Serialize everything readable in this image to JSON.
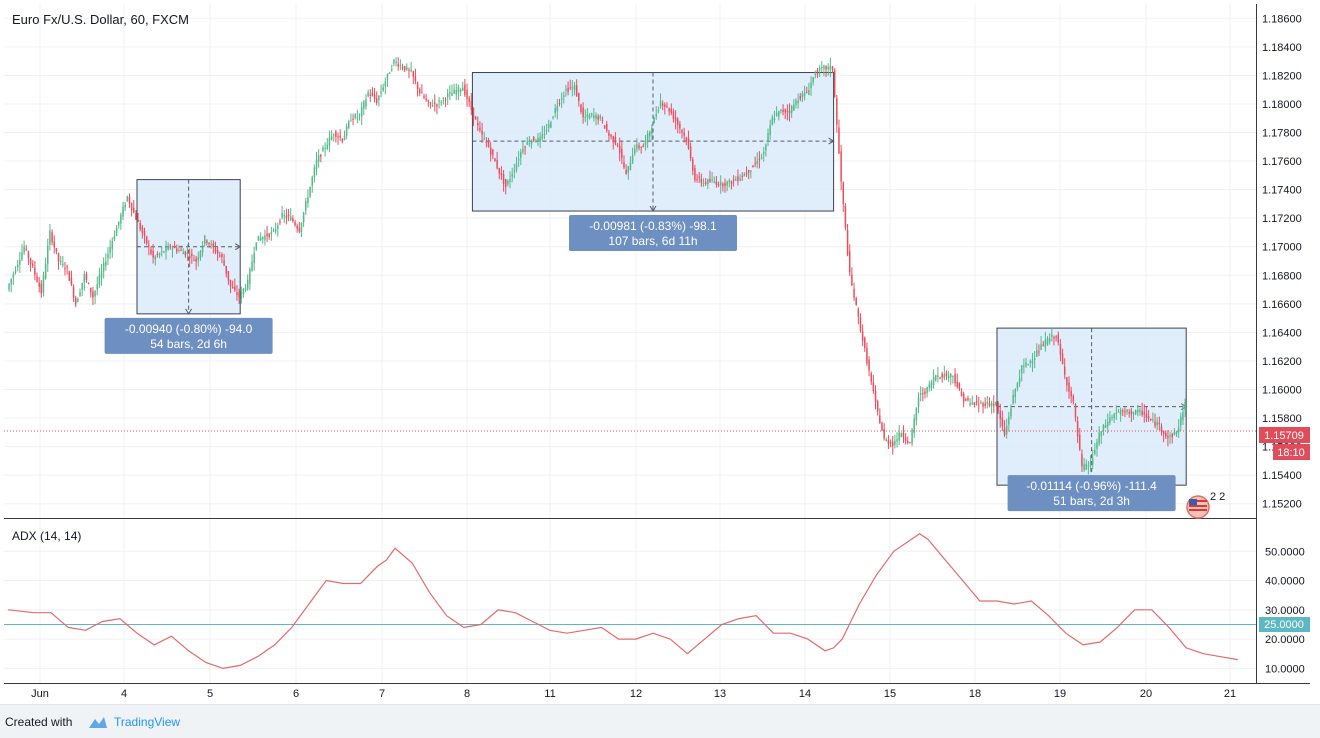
{
  "chart_data": [
    {
      "type": "candlestick",
      "title": "Euro Fx/U.S. Dollar, 60, FXCM",
      "ylim": [
        1.151,
        1.187
      ],
      "y_ticks": [
        "1.18600",
        "1.18400",
        "1.18200",
        "1.18000",
        "1.17800",
        "1.17600",
        "1.17400",
        "1.17200",
        "1.17000",
        "1.16800",
        "1.16600",
        "1.16400",
        "1.16200",
        "1.16000",
        "1.15800",
        "1.15600",
        "1.15400",
        "1.15200"
      ],
      "x_ticks": [
        "Jun",
        "4",
        "5",
        "6",
        "7",
        "8",
        "11",
        "12",
        "13",
        "14",
        "15",
        "18",
        "19",
        "20",
        "21"
      ],
      "last_price": {
        "value": "1.15709",
        "countdown": "18:10",
        "color": "#e04c59"
      },
      "colors": {
        "up": "#53b987",
        "down": "#eb4d5c",
        "box_fill": "#dbeafa",
        "box_border": "#3d4250",
        "label_bg": "#6d8fc2"
      },
      "path": [
        [
          0,
          1.167
        ],
        [
          2,
          1.17
        ],
        [
          3,
          1.1685
        ],
        [
          4,
          1.1668
        ],
        [
          5,
          1.171
        ],
        [
          6,
          1.169
        ],
        [
          7,
          1.1684
        ],
        [
          8,
          1.166
        ],
        [
          9,
          1.168
        ],
        [
          10,
          1.1665
        ],
        [
          12,
          1.17
        ],
        [
          14,
          1.1735
        ],
        [
          15,
          1.172
        ],
        [
          17,
          1.1692
        ],
        [
          19,
          1.17
        ],
        [
          21,
          1.1695
        ],
        [
          22,
          1.169
        ],
        [
          23,
          1.1706
        ],
        [
          25,
          1.1692
        ],
        [
          26,
          1.1672
        ],
        [
          27,
          1.1665
        ],
        [
          28,
          1.1675
        ],
        [
          29,
          1.1705
        ],
        [
          31,
          1.171
        ],
        [
          32,
          1.1722
        ],
        [
          33,
          1.172
        ],
        [
          34,
          1.1712
        ],
        [
          36,
          1.176
        ],
        [
          37,
          1.177
        ],
        [
          38,
          1.178
        ],
        [
          39,
          1.1775
        ],
        [
          40,
          1.179
        ],
        [
          41,
          1.1792
        ],
        [
          42,
          1.1808
        ],
        [
          43,
          1.1802
        ],
        [
          45,
          1.183
        ],
        [
          47,
          1.1822
        ],
        [
          48,
          1.1808
        ],
        [
          49,
          1.18
        ],
        [
          50,
          1.18
        ],
        [
          51,
          1.1805
        ],
        [
          53,
          1.1812
        ],
        [
          55,
          1.178
        ],
        [
          56,
          1.177
        ],
        [
          58,
          1.1742
        ],
        [
          59,
          1.1755
        ],
        [
          60,
          1.177
        ],
        [
          61,
          1.1775
        ],
        [
          62,
          1.1775
        ],
        [
          63,
          1.1785
        ],
        [
          64,
          1.18
        ],
        [
          65,
          1.181
        ],
        [
          66,
          1.1812
        ],
        [
          67,
          1.179
        ],
        [
          68,
          1.1792
        ],
        [
          69,
          1.179
        ],
        [
          70,
          1.1778
        ],
        [
          71,
          1.1772
        ],
        [
          72,
          1.175
        ],
        [
          73,
          1.177
        ],
        [
          74,
          1.177
        ],
        [
          75,
          1.1785
        ],
        [
          76,
          1.1802
        ],
        [
          77,
          1.1796
        ],
        [
          78,
          1.1786
        ],
        [
          79,
          1.1775
        ],
        [
          80,
          1.1748
        ],
        [
          81,
          1.1745
        ],
        [
          82,
          1.1746
        ],
        [
          83,
          1.1744
        ],
        [
          84,
          1.1745
        ],
        [
          85,
          1.1748
        ],
        [
          86,
          1.1752
        ],
        [
          87,
          1.1758
        ],
        [
          88,
          1.1766
        ],
        [
          89,
          1.179
        ],
        [
          90,
          1.1795
        ],
        [
          91,
          1.1795
        ],
        [
          92,
          1.1804
        ],
        [
          93,
          1.1808
        ],
        [
          94,
          1.1822
        ],
        [
          95,
          1.1825
        ],
        [
          96,
          1.1825
        ],
        [
          97,
          1.1745
        ],
        [
          98,
          1.168
        ],
        [
          99,
          1.165
        ],
        [
          100,
          1.162
        ],
        [
          101,
          1.159
        ],
        [
          102,
          1.1565
        ],
        [
          103,
          1.1562
        ],
        [
          104,
          1.157
        ],
        [
          105,
          1.1562
        ],
        [
          106,
          1.1595
        ],
        [
          107,
          1.16
        ],
        [
          108,
          1.161
        ],
        [
          109,
          1.161
        ],
        [
          110,
          1.161
        ],
        [
          111,
          1.1595
        ],
        [
          112,
          1.159
        ],
        [
          113,
          1.159
        ],
        [
          114,
          1.159
        ],
        [
          115,
          1.159
        ],
        [
          116,
          1.1568
        ],
        [
          117,
          1.1595
        ],
        [
          118,
          1.1615
        ],
        [
          119,
          1.162
        ],
        [
          120,
          1.1628
        ],
        [
          121,
          1.1635
        ],
        [
          122,
          1.1638
        ],
        [
          123,
          1.161
        ],
        [
          124,
          1.159
        ],
        [
          125,
          1.1545
        ],
        [
          126,
          1.1548
        ],
        [
          127,
          1.1568
        ],
        [
          128,
          1.1578
        ],
        [
          129,
          1.1584
        ],
        [
          130,
          1.1584
        ],
        [
          131,
          1.1584
        ],
        [
          132,
          1.1584
        ],
        [
          133,
          1.1578
        ],
        [
          134,
          1.1575
        ],
        [
          135,
          1.1566
        ],
        [
          136,
          1.157
        ],
        [
          137,
          1.159
        ]
      ],
      "annotations": [
        {
          "line1": "-0.00940 (-0.80%) -94.0",
          "line2": "54 bars, 2d 6h",
          "t1": 15,
          "t2": 27,
          "p_top": 1.1747,
          "p_bot": 1.1653,
          "p_mid": 1.17,
          "label_pos": "below"
        },
        {
          "line1": "-0.00981 (-0.83%) -98.1",
          "line2": "107 bars, 6d 11h",
          "t1": 54,
          "t2": 96,
          "p_top": 1.1822,
          "p_bot": 1.1725,
          "p_mid": 1.1774,
          "label_pos": "below"
        },
        {
          "line1": "-0.01114 (-0.96%) -111.4",
          "line2": "51 bars, 2d 3h",
          "t1": 115,
          "t2": 137,
          "p_top": 1.1643,
          "p_bot": 1.1533,
          "p_mid": 1.1588,
          "label_pos": "inside-bottom"
        }
      ],
      "marker": "2 2"
    },
    {
      "type": "line",
      "title": "ADX (14, 14)",
      "ylim": [
        5,
        60
      ],
      "y_ticks": [
        "50.0000",
        "40.0000",
        "30.0000",
        "20.0000",
        "10.0000"
      ],
      "threshold": {
        "value": 25,
        "label": "25.0000",
        "color": "#5eb8c4"
      },
      "series": [
        {
          "color": "#e46a6a",
          "points": [
            [
              0,
              30
            ],
            [
              3,
              29
            ],
            [
              5,
              29
            ],
            [
              7,
              24
            ],
            [
              9,
              23
            ],
            [
              11,
              26
            ],
            [
              13,
              27
            ],
            [
              15,
              22
            ],
            [
              17,
              18
            ],
            [
              19,
              21
            ],
            [
              21,
              16
            ],
            [
              23,
              12
            ],
            [
              25,
              10
            ],
            [
              27,
              11
            ],
            [
              29,
              14
            ],
            [
              31,
              18
            ],
            [
              33,
              24
            ],
            [
              35,
              32
            ],
            [
              37,
              40
            ],
            [
              39,
              39
            ],
            [
              41,
              39
            ],
            [
              43,
              45
            ],
            [
              44,
              47
            ],
            [
              45,
              51
            ],
            [
              47,
              46
            ],
            [
              49,
              36
            ],
            [
              51,
              28
            ],
            [
              53,
              24
            ],
            [
              55,
              25
            ],
            [
              57,
              30
            ],
            [
              59,
              29
            ],
            [
              61,
              26
            ],
            [
              63,
              23
            ],
            [
              65,
              22
            ],
            [
              67,
              23
            ],
            [
              69,
              24
            ],
            [
              71,
              20
            ],
            [
              73,
              20
            ],
            [
              75,
              22
            ],
            [
              77,
              20
            ],
            [
              79,
              15
            ],
            [
              81,
              20
            ],
            [
              83,
              25
            ],
            [
              85,
              27
            ],
            [
              87,
              28
            ],
            [
              89,
              22
            ],
            [
              91,
              22
            ],
            [
              93,
              20
            ],
            [
              95,
              16
            ],
            [
              96,
              17
            ],
            [
              97,
              20
            ],
            [
              99,
              32
            ],
            [
              101,
              42
            ],
            [
              103,
              50
            ],
            [
              105,
              54
            ],
            [
              106,
              56
            ],
            [
              107,
              54
            ],
            [
              109,
              47
            ],
            [
              111,
              40
            ],
            [
              113,
              33
            ],
            [
              115,
              33
            ],
            [
              117,
              32
            ],
            [
              119,
              33
            ],
            [
              121,
              28
            ],
            [
              123,
              22
            ],
            [
              125,
              18
            ],
            [
              127,
              19
            ],
            [
              129,
              24
            ],
            [
              131,
              30
            ],
            [
              133,
              30
            ],
            [
              135,
              24
            ],
            [
              137,
              17
            ],
            [
              139,
              15
            ],
            [
              141,
              14
            ],
            [
              143,
              13
            ]
          ]
        }
      ]
    }
  ],
  "footer": {
    "created_with": "Created with",
    "brand": "TradingView"
  }
}
